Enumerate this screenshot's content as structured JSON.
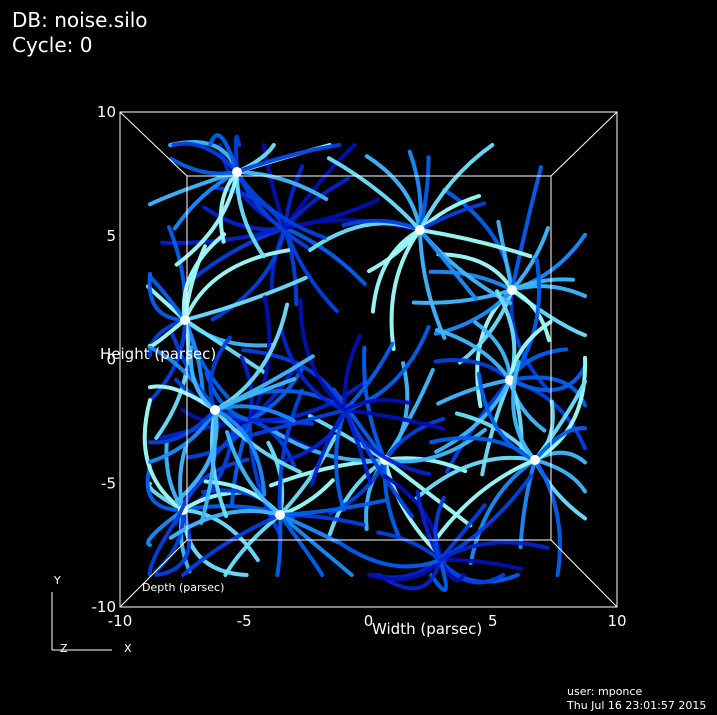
{
  "header": {
    "database": "DB: noise.silo",
    "cycle": "Cycle: 0"
  },
  "axes": {
    "x": {
      "title": "Width (parsec)",
      "ticks": [
        -10,
        -5,
        0,
        5,
        10
      ]
    },
    "y": {
      "title": "Height (parsec)",
      "ticks": [
        10,
        5,
        0,
        -5,
        -10
      ]
    },
    "z": {
      "title": "Depth (parsec)"
    }
  },
  "triad": {
    "y": "Y",
    "z": "Z",
    "x": "X"
  },
  "footer": {
    "user": "user: mponce",
    "date": "Thu Jul 16 23:01:57 2015"
  }
}
